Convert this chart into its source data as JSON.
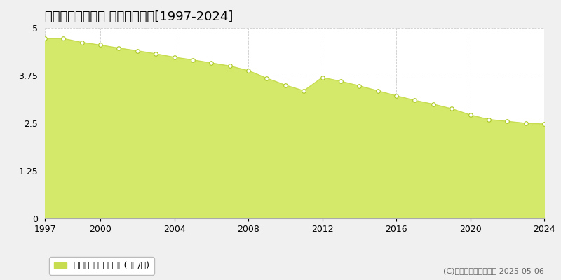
{
  "title": "多気郡大台町上楠 基準地価推移[1997-2024]",
  "years": [
    1997,
    1998,
    1999,
    2000,
    2001,
    2002,
    2003,
    2004,
    2005,
    2006,
    2007,
    2008,
    2009,
    2010,
    2011,
    2012,
    2013,
    2014,
    2015,
    2016,
    2017,
    2018,
    2019,
    2020,
    2021,
    2022,
    2023,
    2024
  ],
  "values": [
    4.72,
    4.72,
    4.62,
    4.55,
    4.47,
    4.4,
    4.32,
    4.23,
    4.16,
    4.08,
    4.0,
    3.88,
    3.68,
    3.5,
    3.35,
    3.7,
    3.6,
    3.48,
    3.35,
    3.22,
    3.1,
    3.0,
    2.88,
    2.72,
    2.6,
    2.55,
    2.5,
    2.48
  ],
  "fill_color": "#d4e96a",
  "line_color": "#c8dc50",
  "marker_facecolor": "#ffffff",
  "marker_edgecolor": "#aac820",
  "bg_color": "#f0f0f0",
  "plot_bg_color": "#ffffff",
  "grid_color": "#cccccc",
  "ylim": [
    0,
    5
  ],
  "yticks": [
    0,
    1.25,
    2.5,
    3.75,
    5
  ],
  "ytick_labels": [
    "0",
    "1.25",
    "2.5",
    "3.75",
    "5"
  ],
  "xticks": [
    1997,
    2000,
    2004,
    2008,
    2012,
    2016,
    2020,
    2024
  ],
  "legend_label": "基準地価 平均坪単価(万円/坪)",
  "legend_color": "#c8dc50",
  "copyright_text": "(C)土地価格ドットコム 2025-05-06",
  "title_fontsize": 13,
  "tick_fontsize": 9,
  "legend_fontsize": 9,
  "copyright_fontsize": 8
}
